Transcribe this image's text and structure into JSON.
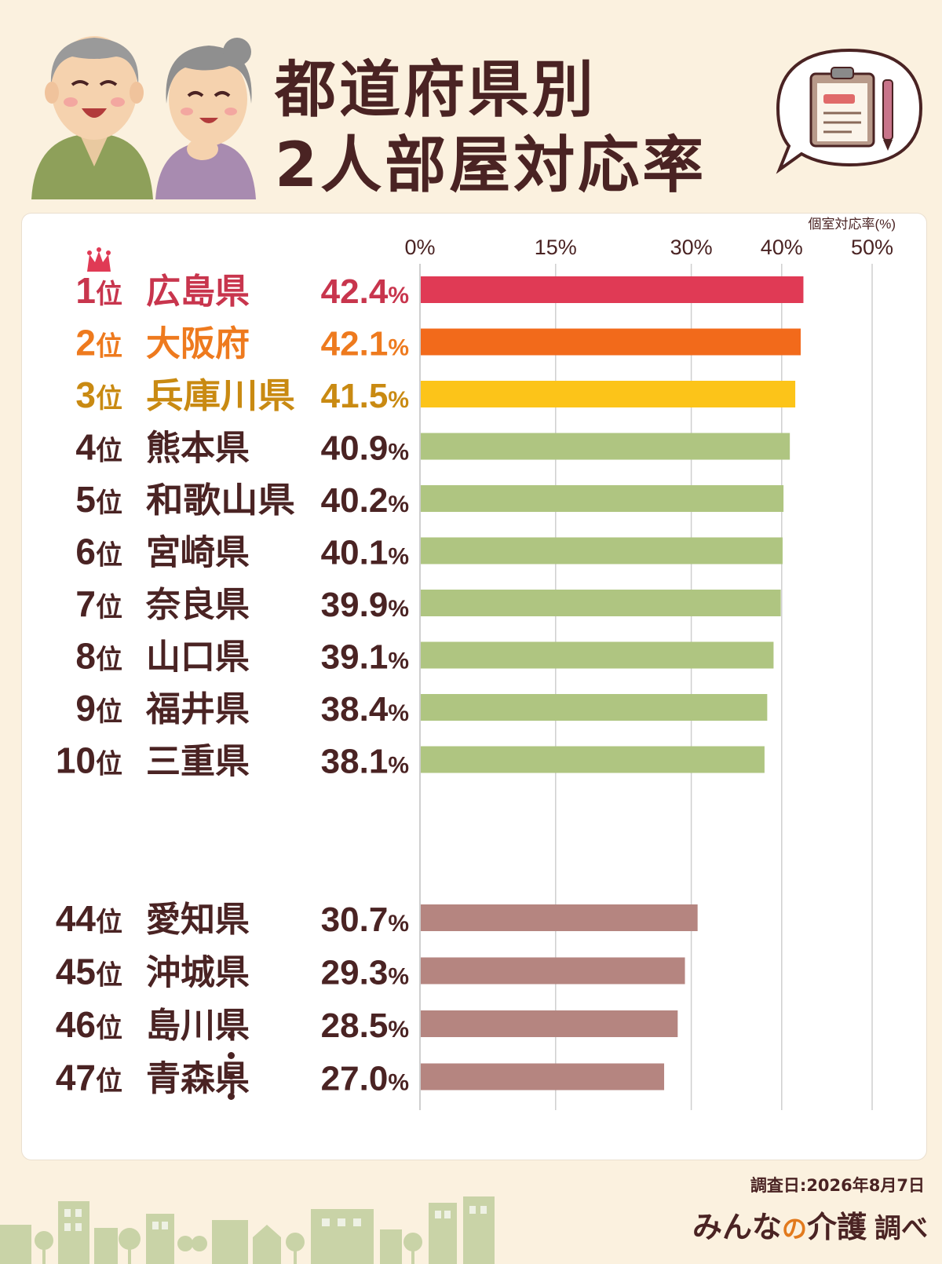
{
  "title": {
    "line1": "都道府県別",
    "line2": "2人部屋対応率"
  },
  "chart_data": {
    "type": "bar",
    "orientation": "horizontal",
    "unit_label": "個室対応率(%)",
    "xlim": [
      0,
      50
    ],
    "xticks": [
      0,
      15,
      30,
      40,
      50
    ],
    "xtick_labels": [
      "0%",
      "15%",
      "30%",
      "40%",
      "50%"
    ],
    "grid": true,
    "colors": {
      "rank1": "#e03a55",
      "rank2": "#f26a1b",
      "rank3": "#fcc419",
      "top": "#afc581",
      "bottom": "#b58580",
      "rank1_text": "#c8354d",
      "rank2_text": "#ee7a1e",
      "rank3_text": "#c98a12",
      "text": "#4a2323"
    },
    "rows": [
      {
        "rank": "1",
        "rank_suffix": "位",
        "name": "広島県",
        "value": 42.4,
        "label": "42.4",
        "pct": "%",
        "group": "rank1"
      },
      {
        "rank": "2",
        "rank_suffix": "位",
        "name": "大阪府",
        "value": 42.1,
        "label": "42.1",
        "pct": "%",
        "group": "rank2"
      },
      {
        "rank": "3",
        "rank_suffix": "位",
        "name": "兵庫川県",
        "value": 41.5,
        "label": "41.5",
        "pct": "%",
        "group": "rank3"
      },
      {
        "rank": "4",
        "rank_suffix": "位",
        "name": "熊本県",
        "value": 40.9,
        "label": "40.9",
        "pct": "%",
        "group": "top"
      },
      {
        "rank": "5",
        "rank_suffix": "位",
        "name": "和歌山県",
        "value": 40.2,
        "label": "40.2",
        "pct": "%",
        "group": "top"
      },
      {
        "rank": "6",
        "rank_suffix": "位",
        "name": "宮崎県",
        "value": 40.1,
        "label": "40.1",
        "pct": "%",
        "group": "top"
      },
      {
        "rank": "7",
        "rank_suffix": "位",
        "name": "奈良県",
        "value": 39.9,
        "label": "39.9",
        "pct": "%",
        "group": "top"
      },
      {
        "rank": "8",
        "rank_suffix": "位",
        "name": "山口県",
        "value": 39.1,
        "label": "39.1",
        "pct": "%",
        "group": "top"
      },
      {
        "rank": "9",
        "rank_suffix": "位",
        "name": "福井県",
        "value": 38.4,
        "label": "38.4",
        "pct": "%",
        "group": "top"
      },
      {
        "rank": "10",
        "rank_suffix": "位",
        "name": "三重県",
        "value": 38.1,
        "label": "38.1",
        "pct": "%",
        "group": "top"
      },
      {
        "rank": "44",
        "rank_suffix": "位",
        "name": "愛知県",
        "value": 30.7,
        "label": "30.7",
        "pct": "%",
        "group": "bottom"
      },
      {
        "rank": "45",
        "rank_suffix": "位",
        "name": "沖城県",
        "value": 29.3,
        "label": "29.3",
        "pct": "%",
        "group": "bottom"
      },
      {
        "rank": "46",
        "rank_suffix": "位",
        "name": "島川県",
        "value": 28.5,
        "label": "28.5",
        "pct": "%",
        "group": "bottom"
      },
      {
        "rank": "47",
        "rank_suffix": "位",
        "name": "青森県",
        "value": 27.0,
        "label": "27.0",
        "pct": "%",
        "group": "bottom"
      }
    ]
  },
  "footer": {
    "date": "調査日:2026年8月7日",
    "brand_a": "みんな",
    "brand_no": "の",
    "brand_b": "介護",
    "brand_suffix": "調べ"
  },
  "illustrations": {
    "people": "elderly-couple-illustration",
    "bubble": "clipboard-speech-bubble-icon",
    "crown": "crown-icon",
    "town": "town-skyline-illustration"
  }
}
